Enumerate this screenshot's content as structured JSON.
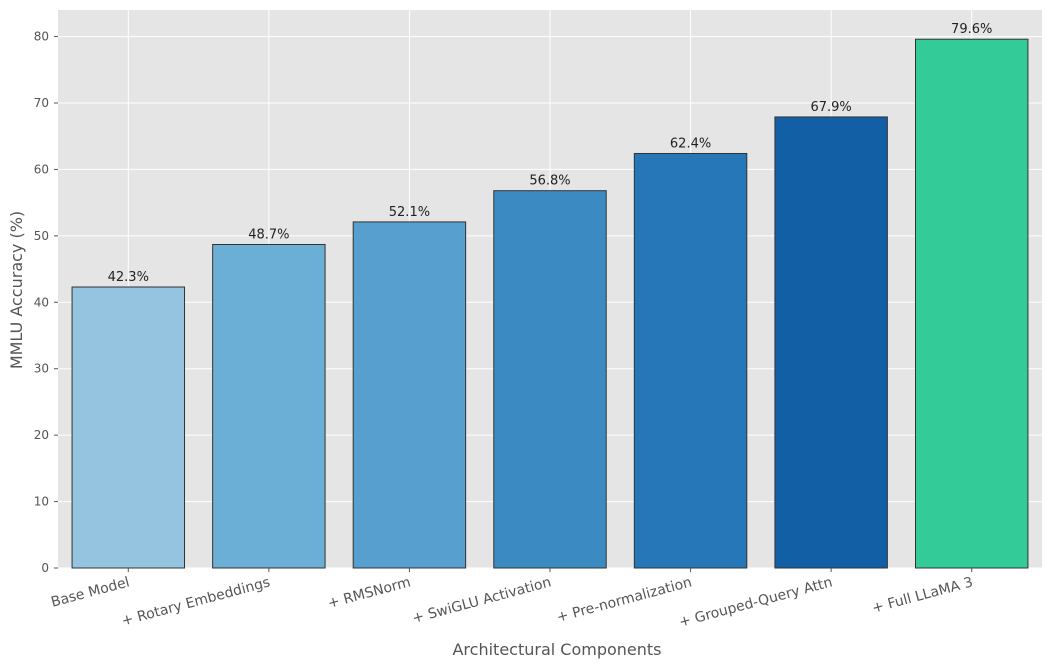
{
  "chart_data": {
    "type": "bar",
    "title": "",
    "xlabel": "Architectural Components",
    "ylabel": "MMLU Accuracy (%)",
    "categories": [
      "Base Model",
      "+ Rotary Embeddings",
      "+ RMSNorm",
      "+ SwiGLU Activation",
      "+ Pre-normalization",
      "+ Grouped-Query Attn",
      "+ Full LLaMA 3"
    ],
    "values": [
      42.3,
      48.7,
      52.1,
      56.8,
      62.4,
      67.9,
      79.6
    ],
    "value_labels": [
      "42.3%",
      "48.7%",
      "52.1%",
      "56.8%",
      "62.4%",
      "67.9%",
      "79.6%"
    ],
    "bar_colors": [
      "#94c4df",
      "#6baed6",
      "#579fcf",
      "#3b8bc2",
      "#2677b8",
      "#135fa6",
      "#33cc99"
    ],
    "ylim": [
      0,
      84
    ],
    "yticks": [
      0,
      10,
      20,
      30,
      40,
      50,
      60,
      70,
      80
    ],
    "grid": true,
    "legend": "none",
    "style": {
      "background": "#e5e5e5",
      "grid_color": "#ffffff",
      "bar_edge": "#333333",
      "text_color": "#555555",
      "label_color": "#222222"
    }
  }
}
